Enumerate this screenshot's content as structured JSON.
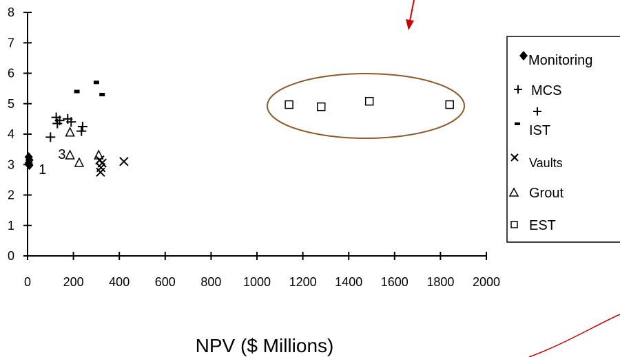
{
  "chart_data": {
    "type": "scatter",
    "xlabel": "NPV ($ Millions)",
    "ylabel": "",
    "xlim": [
      0,
      2000
    ],
    "ylim": [
      0,
      8
    ],
    "x_ticks": [
      "0",
      "200",
      "400",
      "600",
      "800",
      "1000",
      "1200",
      "1400",
      "1600",
      "1800",
      "2000"
    ],
    "y_ticks": [
      "0",
      "1",
      "2",
      "3",
      "4",
      "5",
      "6",
      "7",
      "8"
    ],
    "grid": false,
    "legend_position": "right",
    "series": [
      {
        "name": "Monitoring",
        "marker": "diamond",
        "points": [
          [
            5,
            3.25
          ],
          [
            8,
            3.15
          ],
          [
            5,
            3.05
          ],
          [
            8,
            2.98
          ]
        ]
      },
      {
        "name": "MCS",
        "marker": "plus",
        "points": [
          [
            100,
            3.9
          ],
          [
            125,
            4.55
          ],
          [
            130,
            4.35
          ],
          [
            140,
            4.45
          ],
          [
            175,
            4.5
          ],
          [
            190,
            4.4
          ],
          [
            235,
            4.1
          ],
          [
            240,
            4.25
          ]
        ]
      },
      {
        "name": "IST",
        "marker": "dash",
        "points": [
          [
            215,
            5.4
          ],
          [
            300,
            5.7
          ],
          [
            325,
            5.3
          ]
        ]
      },
      {
        "name": "Vaults",
        "marker": "x",
        "points": [
          [
            315,
            3.15
          ],
          [
            320,
            2.9
          ],
          [
            318,
            2.75
          ],
          [
            325,
            3.05
          ],
          [
            420,
            3.1
          ]
        ]
      },
      {
        "name": "Grout",
        "marker": "triangle",
        "points": [
          [
            185,
            3.3
          ],
          [
            185,
            4.05
          ],
          [
            225,
            3.05
          ],
          [
            310,
            3.3
          ]
        ]
      },
      {
        "name": "EST",
        "marker": "square",
        "points": [
          [
            1140,
            4.97
          ],
          [
            1280,
            4.9
          ],
          [
            1490,
            5.08
          ],
          [
            1840,
            4.97
          ]
        ]
      }
    ],
    "annotations": [
      {
        "text": "1",
        "x": 65,
        "y": 2.85
      },
      {
        "text": "3",
        "x": 150,
        "y": 3.35
      }
    ],
    "colors": {
      "axis": "#000000",
      "ellipse": "#8b5a2b",
      "arrow": "#cc0000"
    }
  },
  "legend": {
    "monitoring": "Monitoring",
    "mcs": "MCS",
    "ist": "IST",
    "vaults": "Vaults",
    "grout": "Grout",
    "est": "EST"
  }
}
